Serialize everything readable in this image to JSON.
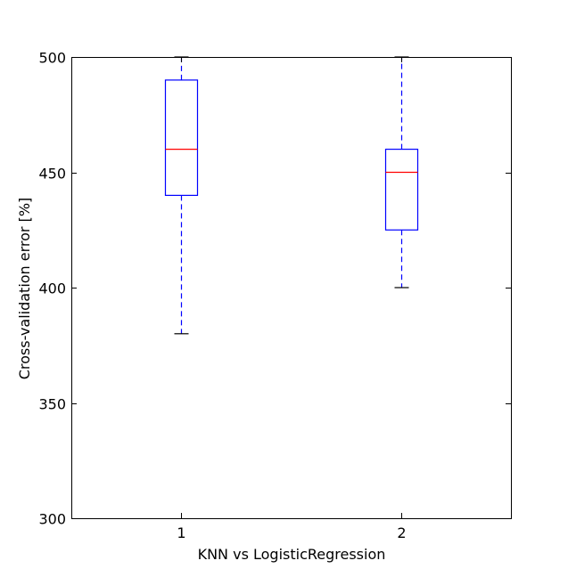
{
  "chart_data": {
    "type": "box",
    "title": "",
    "xlabel": "KNN vs LogisticRegression",
    "ylabel": "Cross-validation error [%]",
    "categories": [
      "1",
      "2"
    ],
    "ylim": [
      300,
      500
    ],
    "yticks": [
      "300",
      "350",
      "400",
      "450",
      "500"
    ],
    "grid": false,
    "boxes": [
      {
        "category": "1",
        "whisker_low": 380,
        "q1": 440,
        "median": 460,
        "q3": 490,
        "whisker_high": 500
      },
      {
        "category": "2",
        "whisker_low": 400,
        "q1": 425,
        "median": 450,
        "q3": 460,
        "whisker_high": 500
      }
    ],
    "colors": {
      "box": "#0000ff",
      "median": "#ff0000",
      "whisker": "#0000ff",
      "cap": "#000000",
      "axes": "#000000"
    }
  }
}
